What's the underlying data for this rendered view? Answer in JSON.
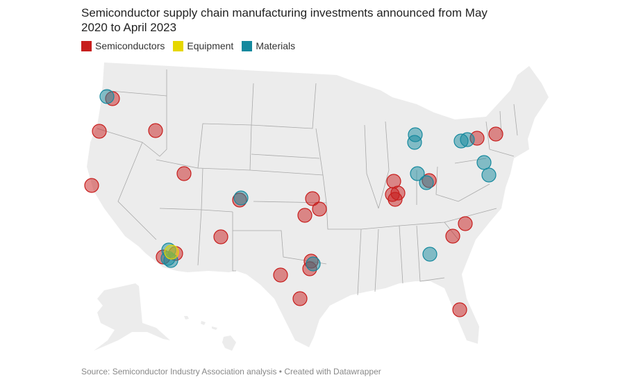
{
  "title": "Semiconductor supply chain manufacturing investments announced from May 2020 to April 2023",
  "legend": [
    {
      "label": "Semiconductors",
      "color": "#c71e1d"
    },
    {
      "label": "Equipment",
      "color": "#e6d700"
    },
    {
      "label": "Materials",
      "color": "#15899e"
    }
  ],
  "map_colors": {
    "land": "#ececec",
    "borders": "#a8a8a8"
  },
  "marker_categories": [
    "Semiconductors",
    "Semiconductors",
    "Semiconductors",
    "Semiconductors",
    "Semiconductors",
    "Semiconductors",
    "Semiconductors",
    "Semiconductors",
    "Semiconductors",
    "Semiconductors",
    "Semiconductors",
    "Semiconductors",
    "Semiconductors",
    "Semiconductors",
    "Semiconductors",
    "Semiconductors",
    "Semiconductors",
    "Semiconductors",
    "Semiconductors",
    "Semiconductors",
    "Semiconductors",
    "Semiconductors",
    "Semiconductors",
    "Semiconductors",
    "Semiconductors",
    "Semiconductors",
    "Materials",
    "Materials",
    "Materials",
    "Materials",
    "Materials",
    "Materials",
    "Materials",
    "Materials",
    "Materials",
    "Materials",
    "Materials",
    "Materials",
    "Materials",
    "Materials",
    "Materials",
    "Equipment"
  ],
  "source": "Source: Semiconductor Industry Association analysis • Created with Datawrapper"
}
